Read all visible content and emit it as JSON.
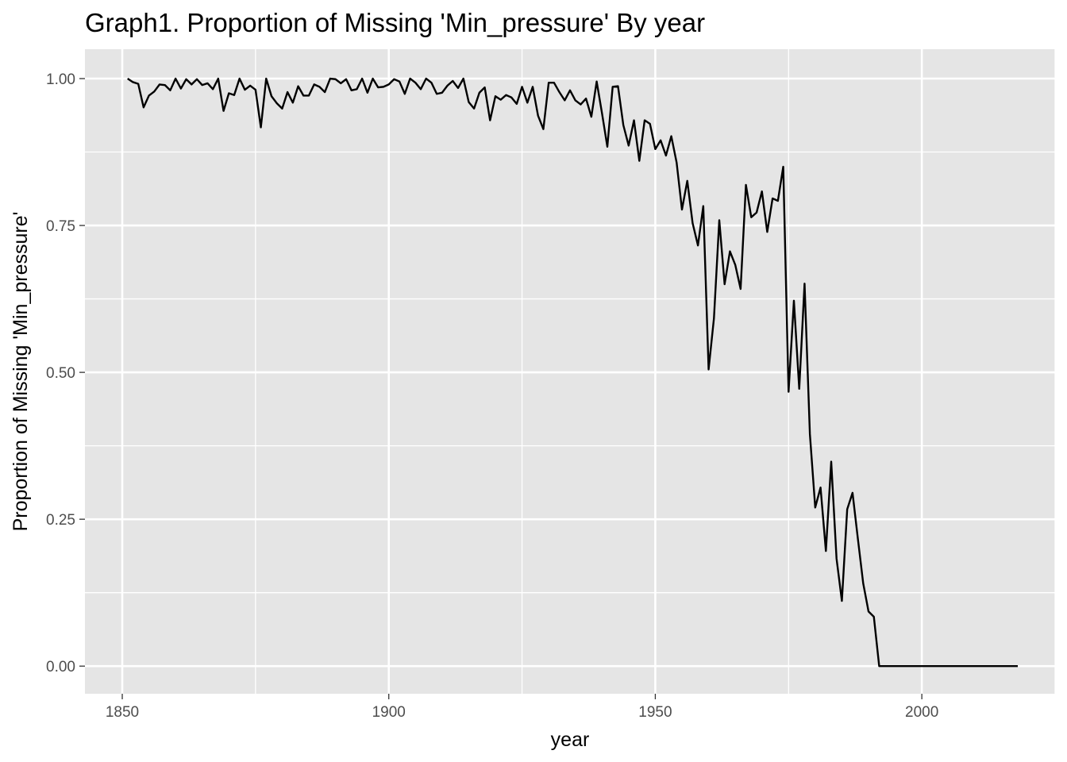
{
  "chart_data": {
    "type": "line",
    "title": "Graph1. Proportion of Missing 'Min_pressure' By year",
    "xlabel": "year",
    "ylabel": "Proportion of Missing 'Min_pressure'",
    "xlim": [
      1843,
      2025
    ],
    "ylim": [
      -0.047,
      1.05
    ],
    "x_ticks": [
      1850,
      1900,
      1950,
      2000
    ],
    "x_tick_labels": [
      "1850",
      "1900",
      "1950",
      "2000"
    ],
    "x_minor_ticks": [
      1875,
      1925,
      1975,
      2025
    ],
    "y_ticks": [
      0,
      0.25,
      0.5,
      0.75,
      1.0
    ],
    "y_tick_labels": [
      "0.00",
      "0.25",
      "0.50",
      "0.75",
      "1.00"
    ],
    "y_minor_ticks": [
      0.125,
      0.375,
      0.625,
      0.875
    ],
    "grid": true,
    "background": "#e5e5e5",
    "line_color": "#000000",
    "x": [
      1851,
      1852,
      1853,
      1854,
      1855,
      1856,
      1857,
      1858,
      1859,
      1860,
      1861,
      1862,
      1863,
      1864,
      1865,
      1866,
      1867,
      1868,
      1869,
      1870,
      1871,
      1872,
      1873,
      1874,
      1875,
      1876,
      1877,
      1878,
      1879,
      1880,
      1881,
      1882,
      1883,
      1884,
      1885,
      1886,
      1887,
      1888,
      1889,
      1890,
      1891,
      1892,
      1893,
      1894,
      1895,
      1896,
      1897,
      1898,
      1899,
      1900,
      1901,
      1902,
      1903,
      1904,
      1905,
      1906,
      1907,
      1908,
      1909,
      1910,
      1911,
      1912,
      1913,
      1914,
      1915,
      1916,
      1917,
      1918,
      1919,
      1920,
      1921,
      1922,
      1923,
      1924,
      1925,
      1926,
      1927,
      1928,
      1929,
      1930,
      1931,
      1932,
      1933,
      1934,
      1935,
      1936,
      1937,
      1938,
      1939,
      1940,
      1941,
      1942,
      1943,
      1944,
      1945,
      1946,
      1947,
      1948,
      1949,
      1950,
      1951,
      1952,
      1953,
      1954,
      1955,
      1956,
      1957,
      1958,
      1959,
      1960,
      1961,
      1962,
      1963,
      1964,
      1965,
      1966,
      1967,
      1968,
      1969,
      1970,
      1971,
      1972,
      1973,
      1974,
      1975,
      1976,
      1977,
      1978,
      1979,
      1980,
      1981,
      1982,
      1983,
      1984,
      1985,
      1986,
      1987,
      1988,
      1989,
      1990,
      1991,
      1992,
      1993,
      1994,
      1995,
      1996,
      1997,
      1998,
      1999,
      2000,
      2001,
      2002,
      2003,
      2004,
      2005,
      2006,
      2007,
      2008,
      2009,
      2010,
      2011,
      2012,
      2013,
      2014,
      2015,
      2016,
      2017,
      2018
    ],
    "y": [
      1.0,
      0.994,
      0.991,
      0.951,
      0.971,
      0.978,
      0.99,
      0.989,
      0.98,
      1.0,
      0.983,
      0.999,
      0.99,
      0.999,
      0.989,
      0.992,
      0.982,
      1.0,
      0.945,
      0.975,
      0.972,
      1.0,
      0.981,
      0.988,
      0.981,
      0.917,
      1.0,
      0.97,
      0.958,
      0.949,
      0.977,
      0.959,
      0.987,
      0.971,
      0.971,
      0.99,
      0.986,
      0.977,
      1.0,
      0.999,
      0.992,
      0.999,
      0.98,
      0.982,
      1.0,
      0.976,
      1.0,
      0.985,
      0.986,
      0.99,
      0.999,
      0.995,
      0.974,
      1.0,
      0.993,
      0.982,
      1.0,
      0.993,
      0.974,
      0.976,
      0.988,
      0.996,
      0.984,
      1.0,
      0.96,
      0.949,
      0.976,
      0.985,
      0.929,
      0.97,
      0.964,
      0.972,
      0.968,
      0.957,
      0.986,
      0.959,
      0.986,
      0.937,
      0.914,
      0.993,
      0.993,
      0.977,
      0.963,
      0.98,
      0.963,
      0.956,
      0.966,
      0.935,
      0.995,
      0.941,
      0.884,
      0.986,
      0.987,
      0.921,
      0.886,
      0.929,
      0.86,
      0.929,
      0.923,
      0.88,
      0.895,
      0.869,
      0.902,
      0.857,
      0.777,
      0.826,
      0.754,
      0.716,
      0.783,
      0.505,
      0.592,
      0.759,
      0.65,
      0.706,
      0.683,
      0.642,
      0.819,
      0.764,
      0.772,
      0.808,
      0.739,
      0.796,
      0.792,
      0.85,
      0.467,
      0.622,
      0.472,
      0.651,
      0.395,
      0.27,
      0.304,
      0.196,
      0.348,
      0.183,
      0.111,
      0.267,
      0.295,
      0.217,
      0.141,
      0.093,
      0.084,
      0.0,
      0.0,
      0.0,
      0.0,
      0.0,
      0.0,
      0.0,
      0.0,
      0.0,
      0.0,
      0.0,
      0.0,
      0.0,
      0.0,
      0.0,
      0.0,
      0.0,
      0.0,
      0.0,
      0.0,
      0.0,
      0.0,
      0.0,
      0.0,
      0.0,
      0.0,
      0.0
    ]
  }
}
